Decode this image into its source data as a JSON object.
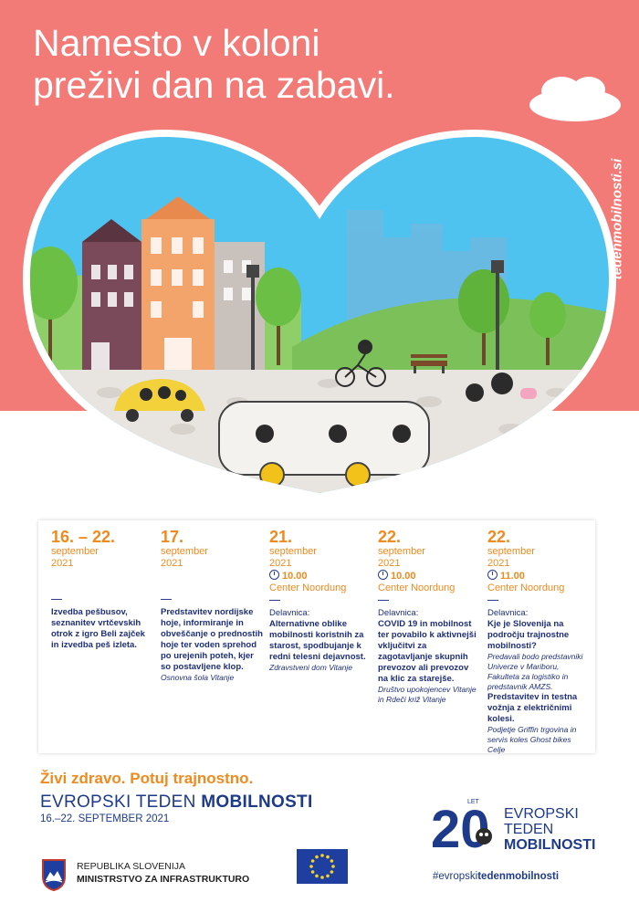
{
  "headline": {
    "line1": "Namesto v koloni",
    "line2": "preživi dan na zabavi."
  },
  "side_url": "tedenmobilnosti.si",
  "colors": {
    "hero_bg": "#f27b78",
    "orange": "#f08a1e",
    "navy": "#1e3a8a",
    "sky": "#4fc3f0"
  },
  "events": [
    {
      "day": "16. – 22.",
      "month": "september",
      "year": "2021",
      "time": "",
      "location": "",
      "label": "",
      "description": "Izvedba pešbusov, seznanitev vrtčevskih otrok z igro Beli zajček in izvedba peš izleta.",
      "organizer": ""
    },
    {
      "day": "17.",
      "month": "september",
      "year": "2021",
      "time": "",
      "location": "",
      "label": "",
      "description": "Predstavitev nordijske hoje, informiranje in obveščanje o prednostih hoje ter voden sprehod po urejenih poteh, kjer so postavljene klop.",
      "organizer": "Osnovna šola Vitanje"
    },
    {
      "day": "21.",
      "month": "september",
      "year": "2021",
      "time": "10.00",
      "location": "Center Noordung",
      "label": "Delavnica:",
      "description": "Alternativne oblike mobilnosti koristnih za starost, spodbujanje k redni telesni dejavnost.",
      "organizer": "Zdravstveni dom Vitanje"
    },
    {
      "day": "22.",
      "month": "september",
      "year": "2021",
      "time": "10.00",
      "location": "Center Noordung",
      "label": "Delavnica:",
      "description": "COVID 19 in mobilnost ter povabilo k aktivnejši vključitvi za zagotavljanje skupnih prevozov ali prevozov na klic za starejše.",
      "organizer": "Društvo upokojencev Vitanje in Rdeči križ Vitanje"
    },
    {
      "day": "22.",
      "month": "september",
      "year": "2021",
      "time": "11.00",
      "location": "Center Noordung",
      "label": "Delavnica:",
      "description": "Kje je Slovenija na področju trajnostne mobilnosti?",
      "organizer": "Predavali bodo predstavniki Univerze v Mariboru, Fakulteta za logistiko in predstavnik AMZS.",
      "description2": "Predstavitev in testna vožnja z električnimi kolesi.",
      "organizer2": "Podjetje Griffin trgovina in servis koles Ghost bikes Celje"
    }
  ],
  "footer": {
    "slogan": "Živi zdravo. Potuj trajnostno.",
    "etm_title_light": "EVROPSKI TEDEN ",
    "etm_title_bold": "MOBILNOSTI",
    "etm_dates": "16.–22. SEPTEMBER 2021",
    "ministry_line1": "REPUBLIKA SLOVENIJA",
    "ministry_line2": "MINISTRSTVO ZA INFRASTRUKTURO",
    "logo_number": "20",
    "logo_let": "LET",
    "logo_line1": "EVROPSKI",
    "logo_line2": "TEDEN",
    "logo_line3": "MOBILNOSTI",
    "hashtag_light": "#evropski",
    "hashtag_bold": "tedenmobilnosti"
  }
}
